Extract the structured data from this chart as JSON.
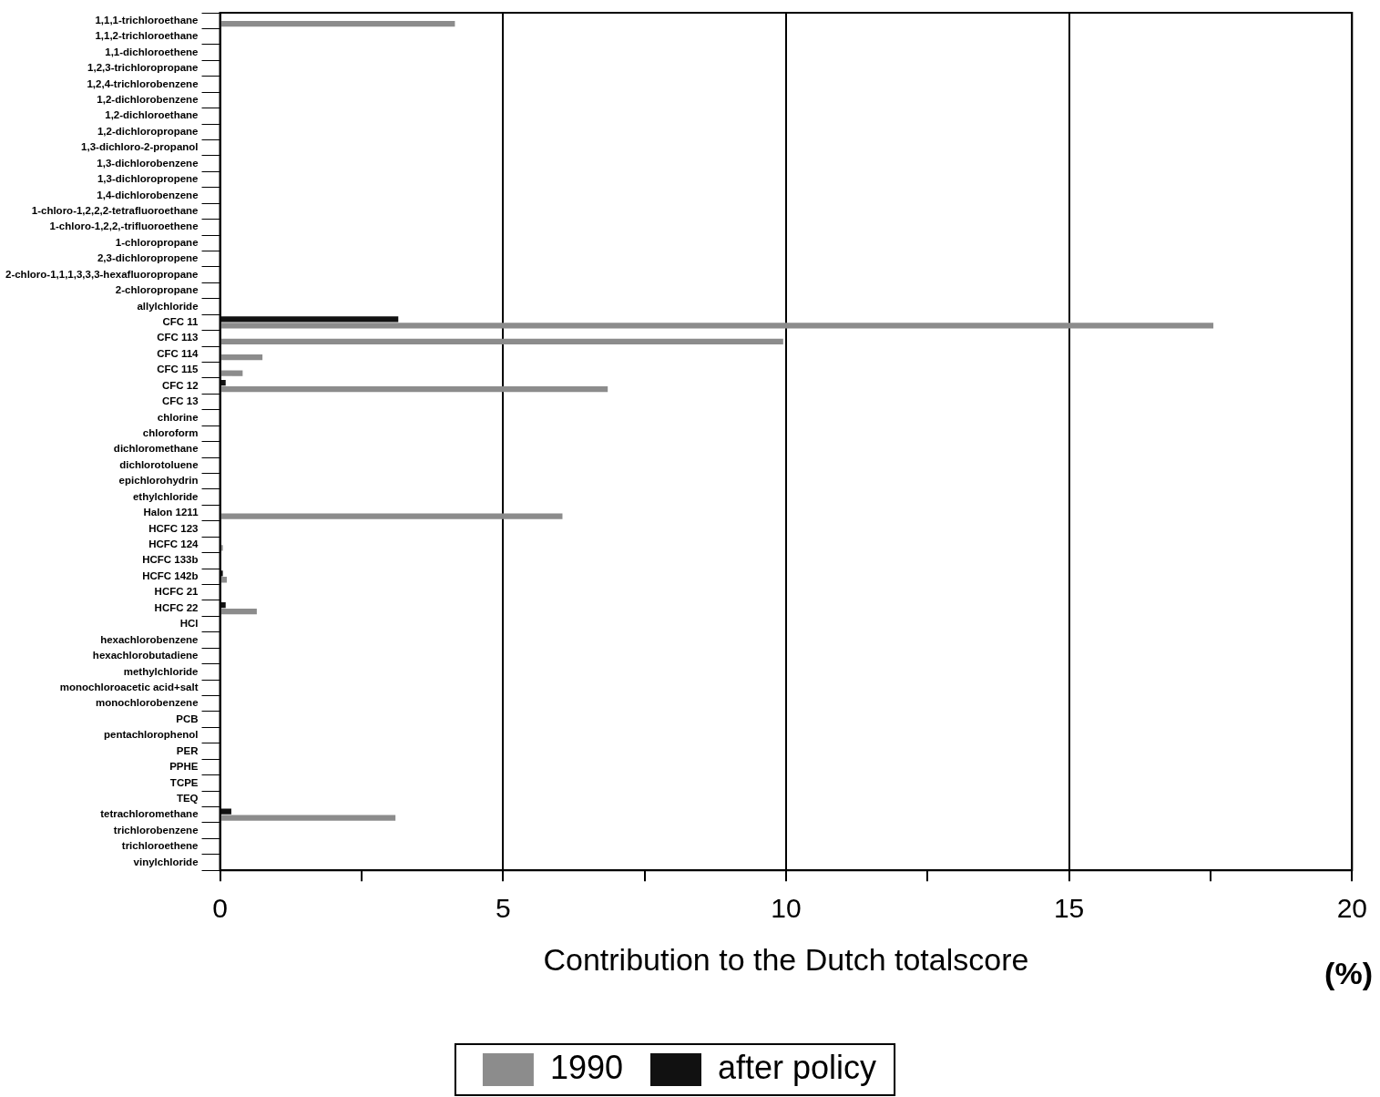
{
  "chart_data": {
    "type": "bar",
    "orientation": "horizontal",
    "categories": [
      "1,1,1-trichloroethane",
      "1,1,2-trichloroethane",
      "1,1-dichloroethene",
      "1,2,3-trichloropropane",
      "1,2,4-trichlorobenzene",
      "1,2-dichlorobenzene",
      "1,2-dichloroethane",
      "1,2-dichloropropane",
      "1,3-dichloro-2-propanol",
      "1,3-dichlorobenzene",
      "1,3-dichloropropene",
      "1,4-dichlorobenzene",
      "1-chloro-1,2,2,2-tetrafluoroethane",
      "1-chloro-1,2,2,-trifluoroethene",
      "1-chloropropane",
      "2,3-dichloropropene",
      "2-chloro-1,1,1,3,3,3-hexafluoropropane",
      "2-chloropropane",
      "allylchloride",
      "CFC 11",
      "CFC 113",
      "CFC 114",
      "CFC 115",
      "CFC 12",
      "CFC 13",
      "chlorine",
      "chloroform",
      "dichloromethane",
      "dichlorotoluene",
      "epichlorohydrin",
      "ethylchloride",
      "Halon 1211",
      "HCFC 123",
      "HCFC 124",
      "HCFC 133b",
      "HCFC 142b",
      "HCFC 21",
      "HCFC 22",
      "HCl",
      "hexachlorobenzene",
      "hexachlorobutadiene",
      "methylchloride",
      "monochloroacetic acid+salt",
      "monochlorobenzene",
      "PCB",
      "pentachlorophenol",
      "PER",
      "PPHE",
      "TCPE",
      "TEQ",
      "tetrachloromethane",
      "trichlorobenzene",
      "trichloroethene",
      "vinylchloride"
    ],
    "series": [
      {
        "name": "after policy",
        "color": "#111111",
        "values": [
          0,
          0,
          0,
          0,
          0,
          0,
          0,
          0,
          0,
          0,
          0,
          0,
          0,
          0,
          0,
          0,
          0,
          0,
          0,
          3.15,
          0,
          0,
          0,
          0.1,
          0,
          0,
          0,
          0,
          0,
          0,
          0,
          0,
          0,
          0,
          0,
          0.05,
          0,
          0.1,
          0,
          0,
          0,
          0,
          0,
          0,
          0,
          0,
          0,
          0,
          0,
          0,
          0.2,
          0,
          0,
          0
        ]
      },
      {
        "name": "1990",
        "color": "#8c8c8c",
        "values": [
          4.15,
          0,
          0,
          0,
          0,
          0,
          0,
          0,
          0,
          0,
          0,
          0,
          0,
          0,
          0,
          0,
          0,
          0,
          0,
          17.55,
          9.95,
          0.75,
          0.4,
          6.85,
          0,
          0,
          0,
          0,
          0,
          0,
          0,
          6.05,
          0,
          0.05,
          0,
          0.12,
          0,
          0.65,
          0,
          0,
          0,
          0,
          0,
          0,
          0,
          0,
          0,
          0,
          0,
          0,
          3.1,
          0,
          0,
          0
        ]
      }
    ],
    "xlim": [
      0,
      20
    ],
    "xticks": [
      0,
      {
        "value": 2.5,
        "label": null
      },
      5,
      {
        "value": 7.5,
        "label": null
      },
      10,
      {
        "value": 12.5,
        "label": null
      },
      15,
      {
        "value": 17.5,
        "label": null
      },
      20
    ],
    "xlabel": "Contribution to the Dutch totalscore",
    "annotations": [
      "(%)"
    ],
    "grid": "x",
    "legend": "bottom"
  }
}
